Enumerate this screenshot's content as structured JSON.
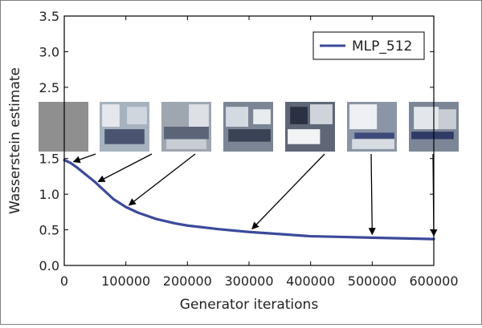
{
  "colors": {
    "series": "#3b4a9a",
    "frame": "#000000",
    "outer_border": "#7f7f7f",
    "text": "#222222"
  },
  "chart_data": {
    "type": "line",
    "xlabel": "Generator iterations",
    "ylabel": "Wasserstein estimate",
    "xlim": [
      0,
      600000
    ],
    "ylim": [
      0,
      3.5
    ],
    "xticks": [
      0,
      100000,
      200000,
      300000,
      400000,
      500000,
      600000
    ],
    "xtick_labels": [
      "0",
      "100000",
      "200000",
      "300000",
      "400000",
      "500000",
      "600000"
    ],
    "yticks": [
      0.0,
      0.5,
      1.0,
      1.5,
      2.0,
      2.5,
      3.0,
      3.5
    ],
    "ytick_labels": [
      "0.0",
      "0.5",
      "1.0",
      "1.5",
      "2.0",
      "2.5",
      "3.0",
      "3.5"
    ],
    "grid": false,
    "legend_position": "top-right",
    "series": [
      {
        "name": "MLP_512",
        "color": "#3b4a9a",
        "x": [
          0,
          10000,
          20000,
          30000,
          40000,
          50000,
          60000,
          70000,
          80000,
          100000,
          120000,
          150000,
          180000,
          200000,
          250000,
          300000,
          350000,
          400000,
          450000,
          500000,
          550000,
          600000
        ],
        "y": [
          1.48,
          1.44,
          1.38,
          1.31,
          1.24,
          1.17,
          1.09,
          1.01,
          0.93,
          0.82,
          0.74,
          0.65,
          0.59,
          0.56,
          0.51,
          0.47,
          0.44,
          0.41,
          0.4,
          0.39,
          0.38,
          0.37
        ]
      }
    ],
    "annotations": {
      "sample_thumbnails": [
        {
          "name": "generator-sample-1",
          "points_to_x": 15000
        },
        {
          "name": "generator-sample-2",
          "points_to_x": 55000
        },
        {
          "name": "generator-sample-3",
          "points_to_x": 105000
        },
        {
          "name": "generator-sample-4",
          "points_to_x": 305000
        },
        {
          "name": "generator-sample-5",
          "points_to_x": 500000
        },
        {
          "name": "generator-sample-6",
          "points_to_x": 600000
        }
      ]
    }
  }
}
